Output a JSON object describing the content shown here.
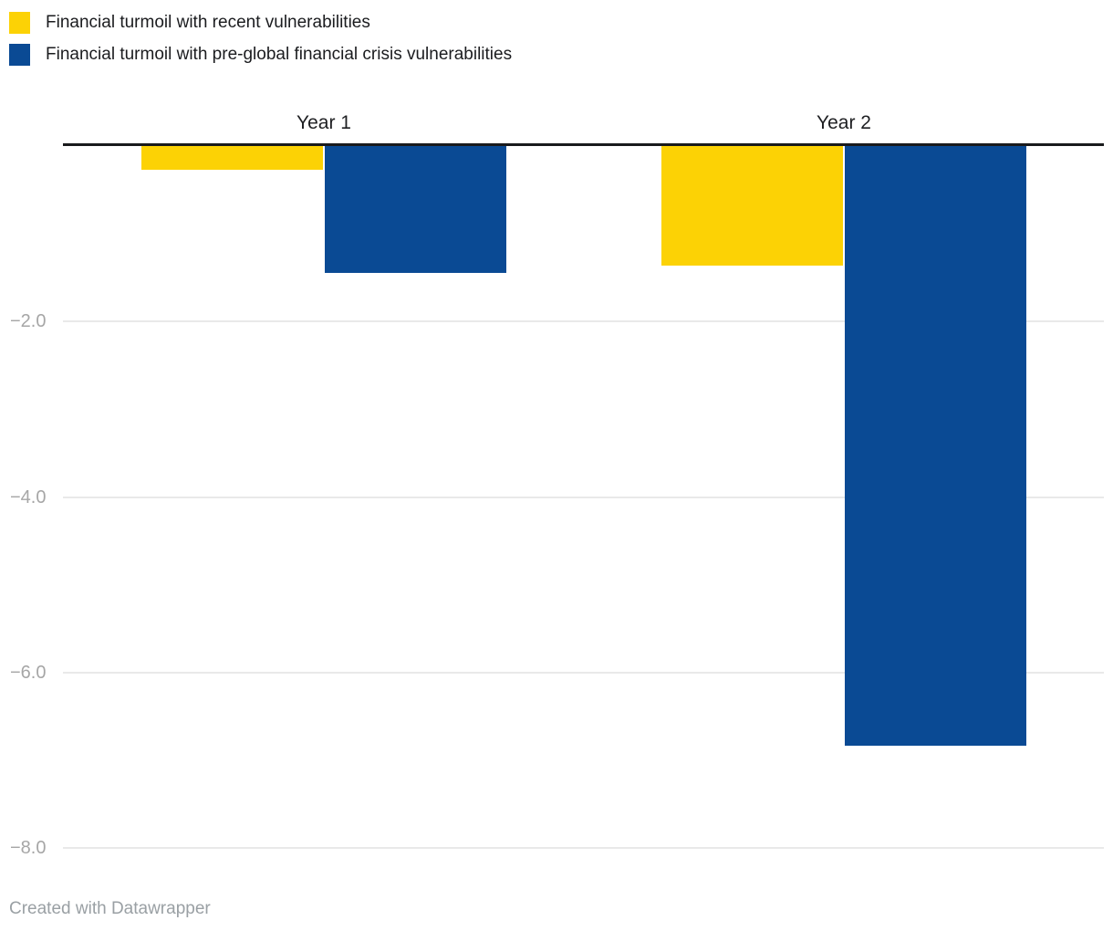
{
  "legend": {
    "items": [
      {
        "label": "Financial turmoil with recent vulnerabilities",
        "color": "#fcd205"
      },
      {
        "label": "Financial turmoil with pre-global financial crisis vulnerabilities",
        "color": "#0a4a94"
      }
    ]
  },
  "chart_data": {
    "type": "bar",
    "subtype": "grouped-vertical-negative",
    "categories": [
      "Year 1",
      "Year 2"
    ],
    "series": [
      {
        "name": "Financial turmoil with recent vulnerabilities",
        "color": "#fcd205",
        "values": [
          -0.27,
          -1.36
        ]
      },
      {
        "name": "Financial turmoil with pre-global financial crisis vulnerabilities",
        "color": "#0a4a94",
        "values": [
          -1.45,
          -6.83
        ]
      }
    ],
    "title": "",
    "xlabel": "",
    "ylabel": "",
    "ylim": [
      -8.4,
      0
    ],
    "yticks": [
      -2.0,
      -4.0,
      -6.0,
      -8.0
    ],
    "ytick_labels": [
      "−2.0",
      "−4.0",
      "−6.0",
      "−8.0"
    ],
    "grid": true,
    "baseline": 0,
    "legend_position": "top-left"
  },
  "footer": {
    "credit": "Created with Datawrapper"
  }
}
